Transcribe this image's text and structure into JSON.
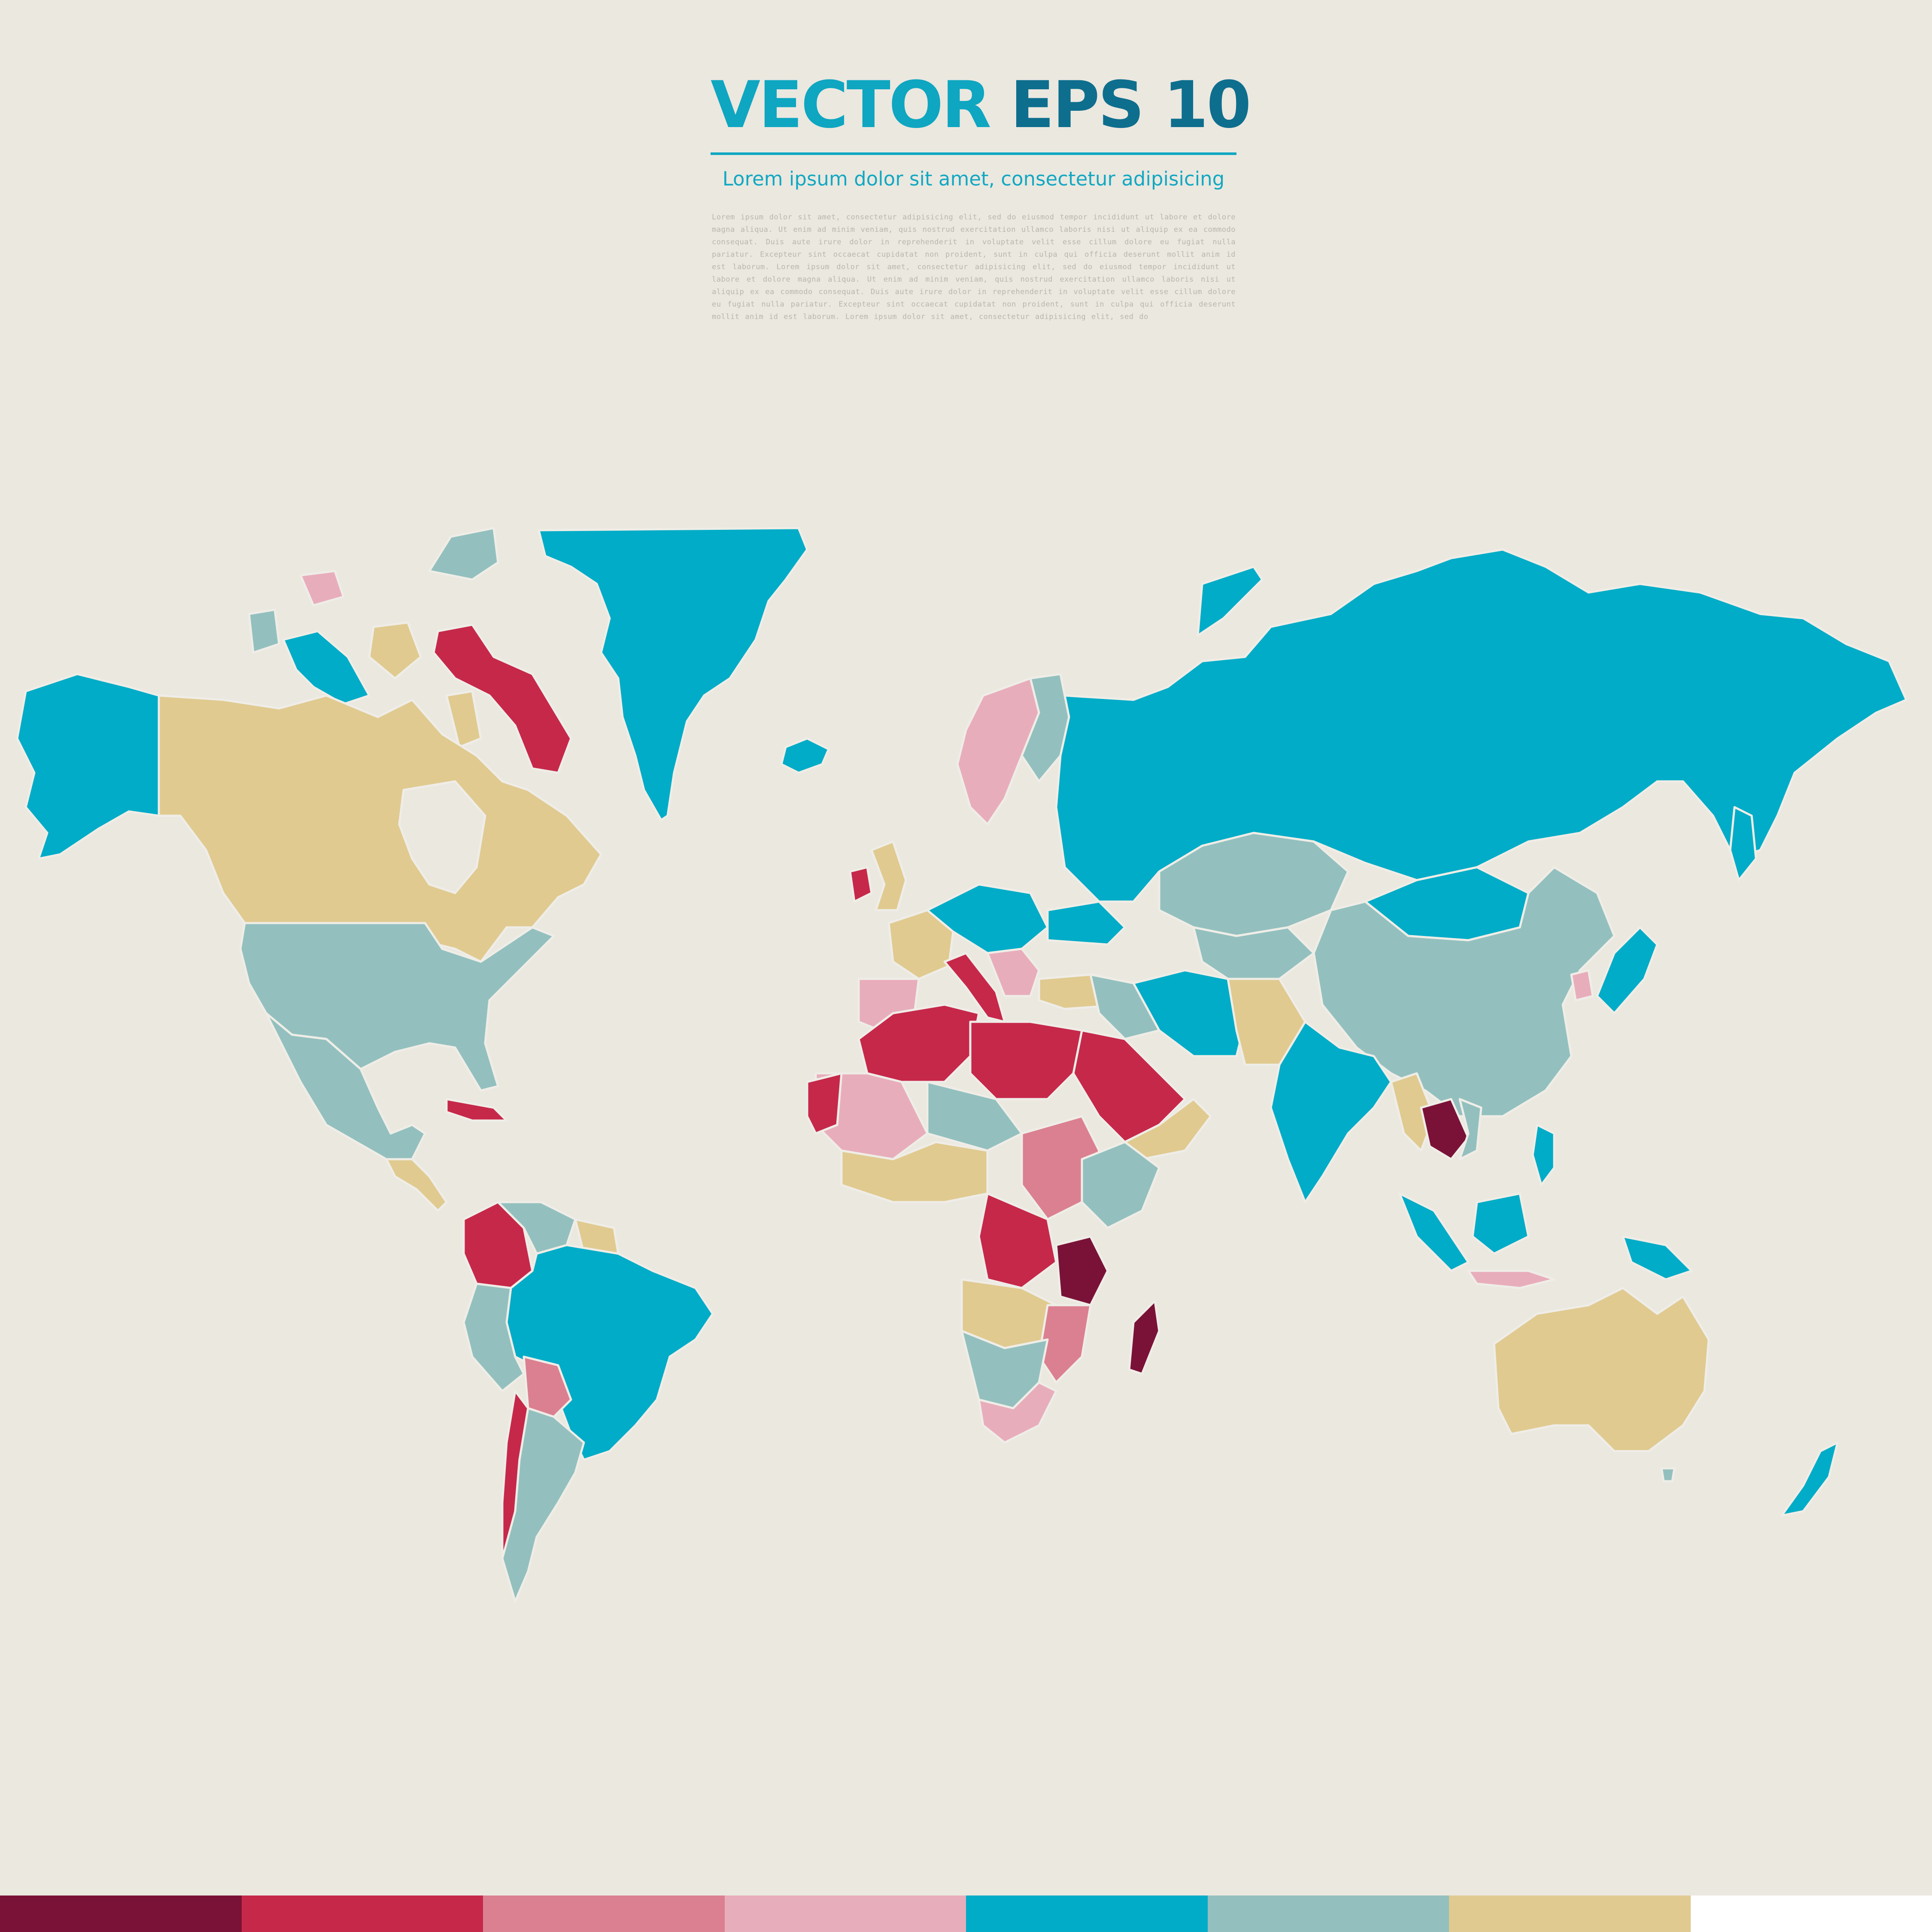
{
  "header": {
    "title_part1": "VECTOR",
    "title_part2": "EPS 10",
    "subtitle": "Lorem ipsum dolor sit amet, consectetur adipisicing",
    "body": "Lorem ipsum dolor sit amet, consectetur adipisicing elit, sed do eiusmod tempor incididunt ut labore et dolore magna aliqua. Ut enim ad minim veniam, quis nostrud exercitation ullamco laboris nisi ut aliquip ex ea commodo consequat. Duis aute irure dolor in reprehenderit in voluptate velit esse cillum dolore eu fugiat nulla pariatur. Excepteur sint occaecat cupidatat non proident, sunt in culpa qui officia deserunt mollit anim id est laborum. Lorem ipsum dolor sit amet, consectetur adipisicing elit, sed do eiusmod tempor incididunt ut labore et dolore magna aliqua. Ut enim ad minim veniam, quis nostrud exercitation ullamco laboris nisi ut aliquip ex ea commodo consequat. Duis aute irure dolor in reprehenderit in voluptate velit esse cillum dolore eu fugiat nulla pariatur. Excepteur sint occaecat cupidatat non proident, sunt in culpa qui officia deserunt mollit anim id est laborum. Lorem ipsum dolor sit amet, consectetur adipisicing elit, sed do"
  },
  "colors": {
    "background": "#EBE8E0",
    "title_light": "#0EA6C1",
    "title_dark": "#0E6E8E",
    "burgundy": "#7A1237",
    "crimson": "#C6284A",
    "rose": "#DB8090",
    "pink": "#E8ADBB",
    "cyan": "#00ACC7",
    "sage": "#93C0BE",
    "sand": "#E0CA90",
    "white": "#FFFFFF"
  },
  "palette": [
    "#7A1237",
    "#C6284A",
    "#DB8090",
    "#E8ADBB",
    "#00ACC7",
    "#93C0BE",
    "#E0CA90",
    "#FFFFFF"
  ]
}
